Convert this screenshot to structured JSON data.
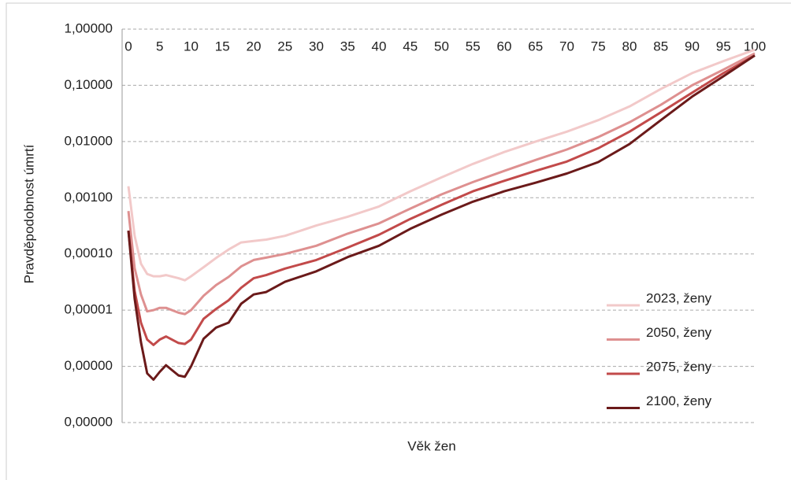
{
  "chart_data": {
    "type": "line",
    "xlabel": "Věk žen",
    "ylabel": "Pravděpodobnost úmrtí",
    "log_y": true,
    "grid": true,
    "legend": "lower right",
    "xlim": [
      0,
      100
    ],
    "xticks": [
      0,
      5,
      10,
      15,
      20,
      25,
      30,
      35,
      40,
      45,
      50,
      55,
      60,
      65,
      70,
      75,
      80,
      85,
      90,
      95,
      100
    ],
    "ylim": [
      1e-07,
      1
    ],
    "yticks": [
      {
        "value": 1,
        "label": "1,00000"
      },
      {
        "value": 0.1,
        "label": "0,10000"
      },
      {
        "value": 0.01,
        "label": "0,01000"
      },
      {
        "value": 0.001,
        "label": "0,00100"
      },
      {
        "value": 0.0001,
        "label": "0,00010"
      },
      {
        "value": 1e-05,
        "label": "0,00001"
      },
      {
        "value": 1e-06,
        "label": "0,00000"
      },
      {
        "value": 1e-07,
        "label": "0,00000"
      }
    ],
    "x": [
      0,
      1,
      2,
      3,
      4,
      5,
      6,
      8,
      9,
      10,
      12,
      14,
      16,
      18,
      20,
      22,
      25,
      30,
      35,
      40,
      45,
      50,
      55,
      60,
      65,
      70,
      75,
      80,
      85,
      90,
      95,
      100
    ],
    "series": [
      {
        "name": "2023, ženy",
        "color": "#f2c9c9",
        "values": [
          0.0016,
          0.00021,
          6.7e-05,
          4.4e-05,
          4e-05,
          4e-05,
          4.2e-05,
          3.7e-05,
          3.4e-05,
          4e-05,
          5.8e-05,
          8.5e-05,
          0.00012,
          0.00016,
          0.00017,
          0.00018,
          0.00021,
          0.00032,
          0.00046,
          0.0007,
          0.0013,
          0.0023,
          0.004,
          0.0065,
          0.01,
          0.015,
          0.024,
          0.042,
          0.086,
          0.165,
          0.27,
          0.43
        ]
      },
      {
        "name": "2050, ženy",
        "color": "#de9090",
        "values": [
          0.00058,
          5.6e-05,
          1.9e-05,
          9.5e-06,
          1e-05,
          1.1e-05,
          1.1e-05,
          9e-06,
          8.5e-06,
          1e-05,
          1.8e-05,
          2.8e-05,
          3.9e-05,
          6e-05,
          7.8e-05,
          8.6e-05,
          0.0001,
          0.00014,
          0.00023,
          0.00035,
          0.00064,
          0.00115,
          0.0019,
          0.003,
          0.0047,
          0.0072,
          0.012,
          0.022,
          0.045,
          0.1,
          0.19,
          0.37
        ]
      },
      {
        "name": "2075, ženy",
        "color": "#c24a4a",
        "values": [
          0.00026,
          2.2e-05,
          6e-06,
          3e-06,
          2.4e-06,
          3e-06,
          3.4e-06,
          2.6e-06,
          2.5e-06,
          3e-06,
          7e-06,
          1.05e-05,
          1.5e-05,
          2.5e-05,
          3.7e-05,
          4.2e-05,
          5.5e-05,
          7.8e-05,
          0.00013,
          0.00022,
          0.00042,
          0.00075,
          0.0013,
          0.002,
          0.003,
          0.0044,
          0.0076,
          0.015,
          0.033,
          0.074,
          0.165,
          0.34
        ]
      },
      {
        "name": "2100, ženy",
        "color": "#6b1a1a",
        "values": [
          0.00026,
          1.6e-05,
          2.7e-06,
          7.5e-07,
          5.8e-07,
          8e-07,
          1.05e-06,
          6.9e-07,
          6.5e-07,
          1e-06,
          3.1e-06,
          4.9e-06,
          6e-06,
          1.3e-05,
          1.9e-05,
          2.1e-05,
          3.2e-05,
          4.9e-05,
          8.8e-05,
          0.00014,
          0.00028,
          0.0005,
          0.00085,
          0.0013,
          0.00185,
          0.0027,
          0.0043,
          0.009,
          0.024,
          0.063,
          0.145,
          0.34
        ]
      }
    ]
  }
}
